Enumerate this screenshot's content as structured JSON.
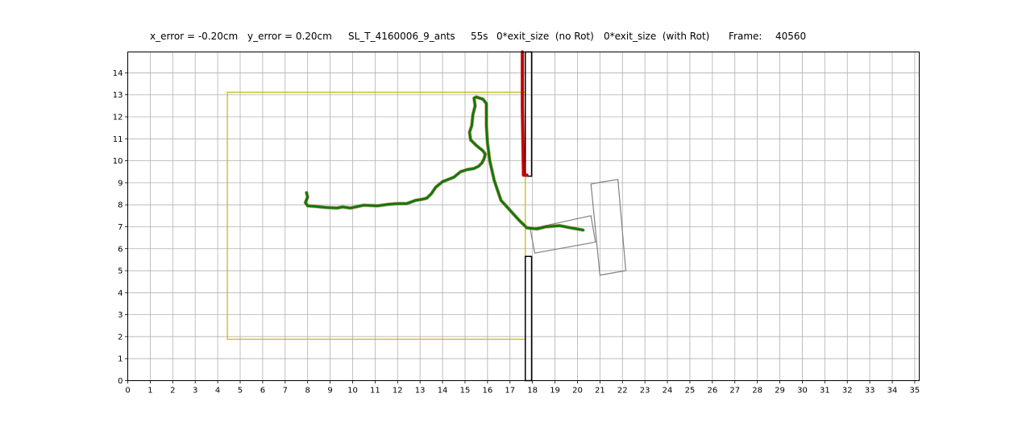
{
  "title": {
    "x_error": "x_error = -0.20cm",
    "y_error": "y_error = 0.20cm",
    "experiment": "SL_T_4160006_9_ants",
    "time": "55s",
    "no_rot": "0*exit_size  (no Rot)",
    "with_rot": "0*exit_size  (with Rot)",
    "frame_label": "Frame:",
    "frame_value": "40560"
  },
  "chart_data": {
    "type": "line",
    "grid": true,
    "xlim": [
      0,
      35.2
    ],
    "ylim": [
      0,
      14.95
    ],
    "xticks": [
      "0",
      "1",
      "2",
      "3",
      "4",
      "5",
      "6",
      "7",
      "8",
      "9",
      "10",
      "11",
      "12",
      "13",
      "14",
      "15",
      "16",
      "17",
      "18",
      "19",
      "20",
      "21",
      "22",
      "23",
      "24",
      "25",
      "26",
      "27",
      "28",
      "29",
      "30",
      "31",
      "32",
      "33",
      "34",
      "35"
    ],
    "yticks": [
      "0",
      "1",
      "2",
      "3",
      "4",
      "5",
      "6",
      "7",
      "8",
      "9",
      "10",
      "11",
      "12",
      "13",
      "14"
    ],
    "colors": {
      "trajectory": "#0c7a0c",
      "trajectory_red": "#c80000",
      "arena": "#c8b400",
      "wall": "#000000",
      "load": "#808080",
      "grid": "#b0b0b0"
    },
    "arena_rect": {
      "x": [
        4.43,
        17.68
      ],
      "y": [
        1.88,
        13.12
      ]
    },
    "walls": [
      {
        "x": [
          17.68,
          17.96
        ],
        "y": [
          9.3,
          14.95
        ]
      },
      {
        "x": [
          17.68,
          17.96
        ],
        "y": [
          0,
          5.65
        ]
      }
    ],
    "load_shape": [
      [
        [
          17.9,
          6.9
        ],
        [
          20.6,
          7.5
        ],
        [
          20.8,
          6.3
        ],
        [
          18.1,
          5.8
        ],
        [
          17.9,
          6.9
        ]
      ],
      [
        [
          20.6,
          8.95
        ],
        [
          21.8,
          9.15
        ],
        [
          22.15,
          5.0
        ],
        [
          21.0,
          4.8
        ],
        [
          20.6,
          8.95
        ]
      ]
    ],
    "series": [
      {
        "color": "green",
        "x": [
          7.95,
          8.0,
          7.9,
          8.0,
          8.3,
          8.8,
          9.3,
          9.55,
          9.9,
          10.5,
          11.1,
          11.6,
          12.0,
          12.4,
          12.8,
          13.1,
          13.3,
          13.5,
          13.7,
          14.0,
          14.5,
          14.8,
          15.1,
          15.4,
          15.6,
          15.75,
          15.85,
          15.9,
          15.8,
          15.5,
          15.25,
          15.2,
          15.3,
          15.35,
          15.45,
          15.4,
          15.5,
          15.8,
          15.95,
          15.95,
          15.95,
          16.0,
          16.1,
          16.3,
          16.6,
          17.0,
          17.4,
          17.75,
          18.2,
          18.6,
          19.2,
          19.7,
          20.25
        ],
        "y": [
          8.55,
          8.35,
          8.1,
          7.95,
          7.93,
          7.88,
          7.85,
          7.9,
          7.85,
          7.98,
          7.95,
          8.02,
          8.05,
          8.05,
          8.2,
          8.25,
          8.3,
          8.5,
          8.8,
          9.05,
          9.25,
          9.5,
          9.6,
          9.65,
          9.75,
          9.9,
          10.1,
          10.3,
          10.45,
          10.7,
          10.95,
          11.3,
          11.6,
          12.1,
          12.5,
          12.85,
          12.9,
          12.8,
          12.6,
          12.2,
          11.6,
          10.8,
          10.0,
          9.1,
          8.2,
          7.75,
          7.3,
          6.95,
          6.9,
          7.0,
          7.05,
          6.95,
          6.85
        ]
      },
      {
        "color": "red",
        "x": [
          17.55,
          17.55,
          17.55,
          17.6,
          17.75
        ],
        "y": [
          14.95,
          12.9,
          12.45,
          9.35,
          9.35
        ]
      }
    ]
  }
}
